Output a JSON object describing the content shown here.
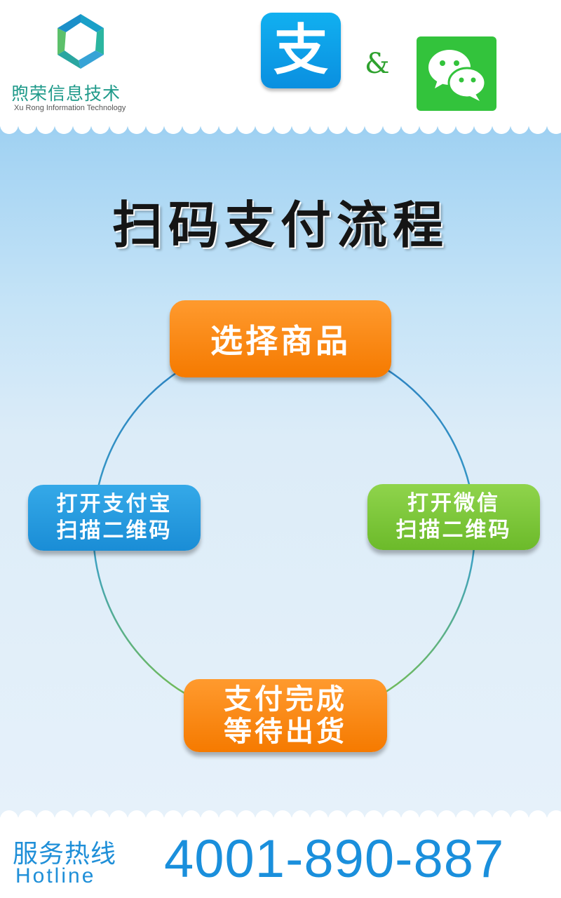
{
  "header": {
    "company_cn": "煦荣信息技术",
    "company_en": "Xu Rong Information Technology",
    "alipay_glyph": "支",
    "ampersand": "&",
    "icons": [
      "logo-icon",
      "alipay-icon",
      "wechat-icon"
    ]
  },
  "main": {
    "title": "扫码支付流程",
    "steps": {
      "top": [
        "选择商品"
      ],
      "left": [
        "打开支付宝",
        "扫描二维码"
      ],
      "right": [
        "打开微信",
        "扫描二维码"
      ],
      "bottom": [
        "支付完成",
        "等待出货"
      ]
    }
  },
  "footer": {
    "hotline_cn": "服务热线",
    "hotline_en": "Hotline",
    "phone": "4001-890-887"
  },
  "colors": {
    "orange": "#f57a00",
    "blue": "#1a8dd6",
    "green": "#6cba2a",
    "hotline_blue": "#1a8fdc",
    "wechat_green": "#33c33c",
    "alipay_blue": "#0a8fe0"
  }
}
